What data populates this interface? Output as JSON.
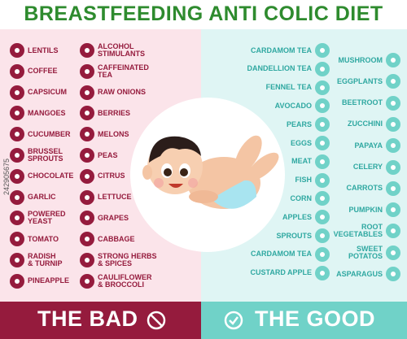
{
  "title": "BREASTFEEDING ANTI COLIC DIET",
  "bad": {
    "footer": "THE BAD",
    "col1": [
      "LENTILS",
      "COFFEE",
      "CAPSICUM",
      "MANGOES",
      "CUCUMBER",
      "BRUSSEL\nSPROUTS",
      "CHOCOLATE",
      "GARLIC",
      "POWERED\nYEAST",
      "TOMATO",
      "RADISH\n& TURNIP",
      "PINEAPPLE"
    ],
    "col2": [
      "ALCOHOL\nSTIMULANTS",
      "CAFFEINATED\nTEA",
      "RAW ONIONS",
      "BERRIES",
      "MELONS",
      "PEAS",
      "CITRUS",
      "LETTUCE",
      "GRAPES",
      "CABBAGE",
      "STRONG HERBS\n& SPICES",
      "CAULIFLOWER\n& BROCCOLI"
    ],
    "icon_color": "#951b3d",
    "panel_color": "#fbe4ea"
  },
  "good": {
    "footer": "THE GOOD",
    "col1": [
      "CARDAMOM TEA",
      "DANDELLION TEA",
      "FENNEL TEA",
      "AVOCADO",
      "PEARS",
      "EGGS",
      "MEAT",
      "FISH",
      "CORN",
      "APPLES",
      "SPROUTS",
      "CARDAMOM TEA",
      "CUSTARD APPLE"
    ],
    "col2": [
      "MUSHROOM",
      "EGGPLANTS",
      "BEETROOT",
      "ZUCCHINI",
      "PAPAYA",
      "CELERY",
      "CARROTS",
      "PUMPKIN",
      "ROOT\nVEGETABLES",
      "SWEET\nPOTATOS",
      "ASPARAGUS"
    ],
    "icon_color": "#70d2c8",
    "panel_color": "#dff5f4"
  },
  "watermark": "242905675"
}
